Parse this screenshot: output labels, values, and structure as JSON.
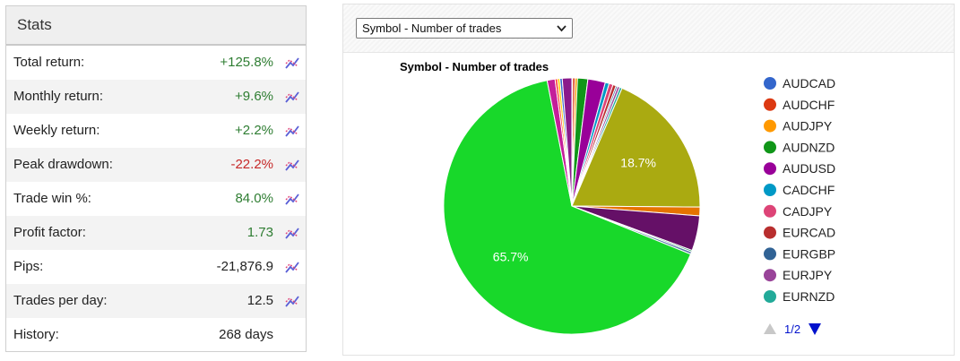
{
  "stats": {
    "title": "Stats",
    "rows": [
      {
        "label": "Total return:",
        "value": "+125.8%",
        "tone": "pos"
      },
      {
        "label": "Monthly return:",
        "value": "+9.6%",
        "tone": "pos"
      },
      {
        "label": "Weekly return:",
        "value": "+2.2%",
        "tone": "pos"
      },
      {
        "label": "Peak drawdown:",
        "value": "-22.2%",
        "tone": "neg"
      },
      {
        "label": "Trade win %:",
        "value": "84.0%",
        "tone": "pos"
      },
      {
        "label": "Profit factor:",
        "value": "1.73",
        "tone": "pos"
      },
      {
        "label": "Pips:",
        "value": "-21,876.9",
        "tone": "neu"
      },
      {
        "label": "Trades per day:",
        "value": "12.5",
        "tone": "neu"
      },
      {
        "label": "History:",
        "value": "268 days",
        "tone": "neu"
      }
    ],
    "chart_icon": "trend-chart-icon"
  },
  "selector": {
    "value": "Symbol - Number of trades"
  },
  "legend_pager": {
    "text": "1/2",
    "prev_icon": "triangle-up-icon",
    "next_icon": "triangle-down-icon"
  },
  "colors": {
    "positive": "#2e7d32",
    "negative": "#c62828"
  },
  "chart_data": {
    "type": "pie",
    "title": "Symbol - Number of trades",
    "legend_position": "right",
    "legend_visible": [
      "AUDCAD",
      "AUDCHF",
      "AUDJPY",
      "AUDNZD",
      "AUDUSD",
      "CADCHF",
      "CADJPY",
      "EURCAD",
      "EURGBP",
      "EURJPY",
      "EURNZD"
    ],
    "slices": [
      {
        "name": "AUDCAD",
        "value": 0.1,
        "color": "#3366cc"
      },
      {
        "name": "AUDCHF",
        "value": 0.3,
        "color": "#dc3912"
      },
      {
        "name": "AUDJPY",
        "value": 0.3,
        "color": "#ff9900"
      },
      {
        "name": "AUDNZD",
        "value": 1.3,
        "color": "#109618"
      },
      {
        "name": "AUDUSD",
        "value": 2.2,
        "color": "#990099"
      },
      {
        "name": "CADCHF",
        "value": 0.5,
        "color": "#0099c6"
      },
      {
        "name": "CADJPY",
        "value": 0.5,
        "color": "#dd4477"
      },
      {
        "name": "EURCAD",
        "value": 0.4,
        "color": "#b82e2e"
      },
      {
        "name": "EURGBP",
        "value": 0.2,
        "color": "#316395"
      },
      {
        "name": "EURJPY",
        "value": 0.3,
        "color": "#994499"
      },
      {
        "name": "EURNZD",
        "value": 0.3,
        "color": "#22aa99"
      },
      {
        "name": "",
        "value": 18.7,
        "color": "#aaaa11",
        "label": "18.7%"
      },
      {
        "name": "",
        "value": 1.1,
        "color": "#e67300"
      },
      {
        "name": "",
        "value": 4.4,
        "color": "#651067"
      },
      {
        "name": "",
        "value": 0.2,
        "color": "#329262"
      },
      {
        "name": "",
        "value": 0.3,
        "color": "#5574a6"
      },
      {
        "name": "",
        "value": 65.7,
        "color": "#18d82a",
        "label": "65.7%"
      },
      {
        "name": "",
        "value": 1.0,
        "color": "#c41e9a"
      },
      {
        "name": "",
        "value": 0.3,
        "color": "#ff3333"
      },
      {
        "name": "",
        "value": 0.3,
        "color": "#ffcc00"
      },
      {
        "name": "",
        "value": 0.3,
        "color": "#3366cc"
      },
      {
        "name": "",
        "value": 1.2,
        "color": "#8b1a8b"
      }
    ]
  }
}
